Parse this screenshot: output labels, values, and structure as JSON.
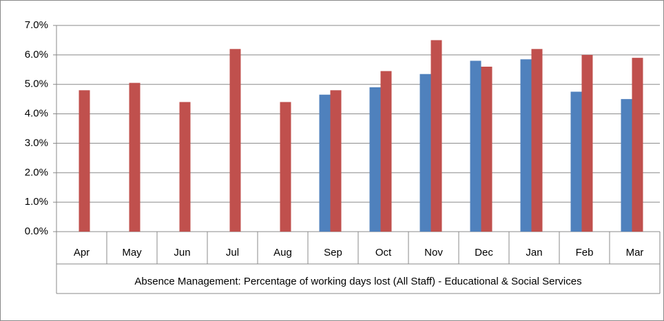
{
  "chart_data": {
    "type": "bar",
    "x_label": "Absence Management: Percentage of working days lost (All Staff) - Educational & Social Services",
    "categories": [
      "Apr",
      "May",
      "Jun",
      "Jul",
      "Aug",
      "Sep",
      "Oct",
      "Nov",
      "Dec",
      "Jan",
      "Feb",
      "Mar"
    ],
    "series": [
      {
        "color": "#4f81bd",
        "values": [
          null,
          null,
          null,
          null,
          null,
          4.65,
          4.9,
          5.35,
          5.8,
          5.85,
          4.75,
          4.5
        ]
      },
      {
        "color": "#c0504d",
        "values": [
          4.8,
          5.05,
          4.4,
          6.2,
          4.4,
          4.8,
          5.45,
          6.5,
          5.6,
          6.2,
          6.0,
          5.9
        ]
      }
    ],
    "ylim": [
      0,
      7
    ],
    "yticks": [
      {
        "value": 0,
        "label": "0.0%"
      },
      {
        "value": 1,
        "label": "1.0%"
      },
      {
        "value": 2,
        "label": "2.0%"
      },
      {
        "value": 3,
        "label": "3.0%"
      },
      {
        "value": 4,
        "label": "4.0%"
      },
      {
        "value": 5,
        "label": "5.0%"
      },
      {
        "value": 6,
        "label": "6.0%"
      },
      {
        "value": 7,
        "label": "7.0%"
      }
    ],
    "grid": true
  }
}
